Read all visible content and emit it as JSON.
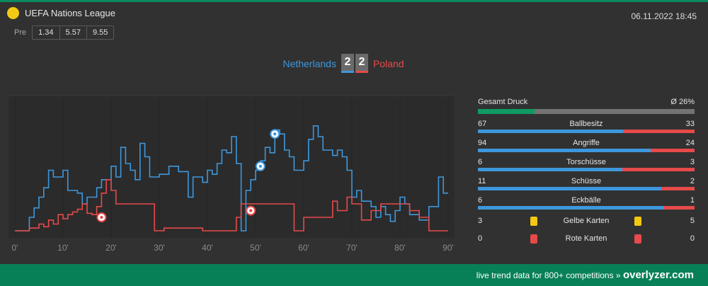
{
  "league": {
    "name": "UEFA Nations League",
    "color": "#f4c914"
  },
  "date": "06.11.2022 18:45",
  "odds": {
    "label": "Pre",
    "values": [
      "1.34",
      "5.57",
      "9.55"
    ]
  },
  "match": {
    "home": "Netherlands",
    "away": "Poland",
    "home_score": "2",
    "away_score": "2",
    "home_color": "#3e97dc",
    "away_color": "#e64a4a"
  },
  "stats": {
    "pressure": {
      "label": "Gesamt Druck",
      "value": "Ø 26%",
      "fraction": 0.26
    },
    "rows": [
      {
        "label": "Ballbesitz",
        "home": "67",
        "away": "33"
      },
      {
        "label": "Angriffe",
        "home": "94",
        "away": "24"
      },
      {
        "label": "Torschüsse",
        "home": "6",
        "away": "3"
      },
      {
        "label": "Schüsse",
        "home": "11",
        "away": "2"
      },
      {
        "label": "Eckbälle",
        "home": "6",
        "away": "1"
      }
    ],
    "yellow": {
      "label": "Gelbe Karten",
      "home": "3",
      "away": "5"
    },
    "red": {
      "label": "Rote Karten",
      "home": "0",
      "away": "0"
    }
  },
  "chart_data": {
    "type": "line",
    "x_ticks": [
      "0'",
      "10'",
      "20'",
      "30'",
      "40'",
      "50'",
      "60'",
      "70'",
      "80'",
      "90'"
    ],
    "xlim": [
      0,
      90
    ],
    "ylim": [
      0,
      100
    ],
    "grid": true,
    "series": [
      {
        "name": "Netherlands",
        "color": "#3e97dc",
        "points": [
          [
            0,
            0
          ],
          [
            3,
            0
          ],
          [
            3,
            10
          ],
          [
            4,
            10
          ],
          [
            4,
            17
          ],
          [
            5,
            17
          ],
          [
            5,
            25
          ],
          [
            6,
            25
          ],
          [
            6,
            32
          ],
          [
            7,
            32
          ],
          [
            7,
            45
          ],
          [
            8,
            45
          ],
          [
            8,
            40
          ],
          [
            10,
            40
          ],
          [
            10,
            45
          ],
          [
            11,
            45
          ],
          [
            11,
            30
          ],
          [
            13,
            30
          ],
          [
            13,
            28
          ],
          [
            14,
            28
          ],
          [
            14,
            20
          ],
          [
            15,
            20
          ],
          [
            15,
            25
          ],
          [
            17,
            25
          ],
          [
            17,
            32
          ],
          [
            18,
            32
          ],
          [
            18,
            38
          ],
          [
            20,
            38
          ],
          [
            20,
            48
          ],
          [
            21,
            48
          ],
          [
            21,
            40
          ],
          [
            22,
            40
          ],
          [
            22,
            62
          ],
          [
            23,
            62
          ],
          [
            23,
            50
          ],
          [
            24,
            50
          ],
          [
            24,
            45
          ],
          [
            25,
            45
          ],
          [
            25,
            38
          ],
          [
            26,
            38
          ],
          [
            26,
            65
          ],
          [
            27,
            65
          ],
          [
            27,
            55
          ],
          [
            28,
            55
          ],
          [
            28,
            40
          ],
          [
            30,
            40
          ],
          [
            30,
            42
          ],
          [
            32,
            42
          ],
          [
            32,
            48
          ],
          [
            34,
            48
          ],
          [
            34,
            44
          ],
          [
            36,
            44
          ],
          [
            36,
            25
          ],
          [
            37,
            25
          ],
          [
            37,
            40
          ],
          [
            39,
            40
          ],
          [
            39,
            36
          ],
          [
            40,
            36
          ],
          [
            40,
            45
          ],
          [
            41,
            45
          ],
          [
            41,
            42
          ],
          [
            42,
            42
          ],
          [
            42,
            50
          ],
          [
            43,
            50
          ],
          [
            43,
            60
          ],
          [
            44,
            60
          ],
          [
            44,
            58
          ],
          [
            45,
            58
          ],
          [
            45,
            70
          ],
          [
            46,
            70
          ],
          [
            46,
            50
          ],
          [
            47,
            50
          ],
          [
            47,
            0
          ],
          [
            48,
            0
          ],
          [
            48,
            30
          ],
          [
            49,
            30
          ],
          [
            49,
            38
          ],
          [
            50,
            38
          ],
          [
            50,
            45
          ],
          [
            51,
            45
          ],
          [
            51,
            52
          ],
          [
            52,
            52
          ],
          [
            52,
            62
          ],
          [
            53,
            62
          ],
          [
            53,
            58
          ],
          [
            54,
            58
          ],
          [
            54,
            75
          ],
          [
            55,
            75
          ],
          [
            55,
            72
          ],
          [
            56,
            72
          ],
          [
            56,
            60
          ],
          [
            57,
            60
          ],
          [
            57,
            55
          ],
          [
            58,
            55
          ],
          [
            58,
            45
          ],
          [
            60,
            45
          ],
          [
            60,
            52
          ],
          [
            61,
            52
          ],
          [
            61,
            68
          ],
          [
            62,
            68
          ],
          [
            62,
            78
          ],
          [
            63,
            78
          ],
          [
            63,
            70
          ],
          [
            64,
            70
          ],
          [
            64,
            60
          ],
          [
            66,
            60
          ],
          [
            66,
            56
          ],
          [
            67,
            56
          ],
          [
            67,
            60
          ],
          [
            68,
            60
          ],
          [
            68,
            55
          ],
          [
            69,
            55
          ],
          [
            69,
            45
          ],
          [
            70,
            45
          ],
          [
            70,
            25
          ],
          [
            71,
            25
          ],
          [
            71,
            30
          ],
          [
            72,
            30
          ],
          [
            72,
            22
          ],
          [
            74,
            22
          ],
          [
            74,
            18
          ],
          [
            75,
            18
          ],
          [
            75,
            10
          ],
          [
            76,
            10
          ],
          [
            76,
            18
          ],
          [
            77,
            18
          ],
          [
            77,
            12
          ],
          [
            78,
            12
          ],
          [
            78,
            7
          ],
          [
            79,
            7
          ],
          [
            79,
            15
          ],
          [
            80,
            15
          ],
          [
            80,
            25
          ],
          [
            81,
            25
          ],
          [
            81,
            20
          ],
          [
            82,
            20
          ],
          [
            82,
            12
          ],
          [
            84,
            12
          ],
          [
            84,
            8
          ],
          [
            86,
            8
          ],
          [
            86,
            18
          ],
          [
            88,
            18
          ],
          [
            88,
            40
          ],
          [
            89,
            40
          ],
          [
            89,
            28
          ],
          [
            90,
            28
          ]
        ]
      },
      {
        "name": "Poland",
        "color": "#e64a4a",
        "points": [
          [
            0,
            0
          ],
          [
            3,
            0
          ],
          [
            3,
            2
          ],
          [
            5,
            2
          ],
          [
            5,
            5
          ],
          [
            6,
            5
          ],
          [
            6,
            3
          ],
          [
            7,
            3
          ],
          [
            7,
            8
          ],
          [
            8,
            8
          ],
          [
            8,
            5
          ],
          [
            9,
            5
          ],
          [
            9,
            12
          ],
          [
            10,
            12
          ],
          [
            10,
            9
          ],
          [
            11,
            9
          ],
          [
            11,
            12
          ],
          [
            12,
            12
          ],
          [
            12,
            14
          ],
          [
            13,
            14
          ],
          [
            13,
            16
          ],
          [
            14,
            16
          ],
          [
            14,
            20
          ],
          [
            15,
            20
          ],
          [
            15,
            13
          ],
          [
            16,
            13
          ],
          [
            16,
            12
          ],
          [
            17,
            12
          ],
          [
            17,
            18
          ],
          [
            18,
            18
          ],
          [
            18,
            28
          ],
          [
            19,
            28
          ],
          [
            19,
            38
          ],
          [
            20,
            38
          ],
          [
            20,
            30
          ],
          [
            21,
            30
          ],
          [
            21,
            20
          ],
          [
            29,
            20
          ],
          [
            29,
            0
          ],
          [
            31,
            0
          ],
          [
            31,
            2
          ],
          [
            39,
            2
          ],
          [
            39,
            0
          ],
          [
            46,
            0
          ],
          [
            46,
            10
          ],
          [
            47,
            10
          ],
          [
            47,
            20
          ],
          [
            58,
            20
          ],
          [
            58,
            0
          ],
          [
            60,
            0
          ],
          [
            60,
            10
          ],
          [
            66,
            10
          ],
          [
            66,
            22
          ],
          [
            67,
            22
          ],
          [
            67,
            15
          ],
          [
            69,
            15
          ],
          [
            69,
            25
          ],
          [
            70,
            25
          ],
          [
            70,
            20
          ],
          [
            72,
            20
          ],
          [
            72,
            8
          ],
          [
            74,
            8
          ],
          [
            74,
            15
          ],
          [
            76,
            15
          ],
          [
            76,
            20
          ],
          [
            82,
            20
          ],
          [
            82,
            15
          ],
          [
            84,
            15
          ],
          [
            84,
            10
          ],
          [
            86,
            10
          ],
          [
            86,
            0
          ],
          [
            90,
            0
          ]
        ]
      }
    ],
    "events": [
      {
        "team": "Poland",
        "minute": 18,
        "value": 10
      },
      {
        "team": "Netherlands",
        "minute": 51,
        "value": 48
      },
      {
        "team": "Netherlands",
        "minute": 54,
        "value": 72
      },
      {
        "team": "Poland",
        "minute": 49,
        "value": 15
      }
    ]
  },
  "footer": {
    "text": "live trend data for 800+ competitions »",
    "brand": "overlyzer.com"
  }
}
